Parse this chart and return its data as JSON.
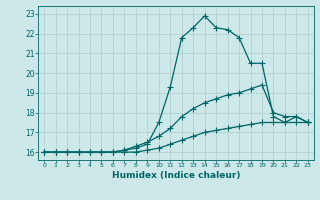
{
  "xlabel": "Humidex (Indice chaleur)",
  "bg_color": "#cce8e8",
  "line_color": "#006666",
  "grid_color": "#b0cccc",
  "xlim": [
    -0.5,
    23.5
  ],
  "ylim": [
    15.6,
    23.4
  ],
  "xticks": [
    0,
    1,
    2,
    3,
    4,
    5,
    6,
    7,
    8,
    9,
    10,
    11,
    12,
    13,
    14,
    15,
    16,
    17,
    18,
    19,
    20,
    21,
    22,
    23
  ],
  "yticks": [
    16,
    17,
    18,
    19,
    20,
    21,
    22,
    23
  ],
  "line1_x": [
    0,
    1,
    2,
    3,
    4,
    5,
    6,
    7,
    8,
    9,
    10,
    11,
    12,
    13,
    14,
    15,
    16,
    17,
    18,
    19,
    20,
    21,
    22,
    23
  ],
  "line1_y": [
    16.0,
    16.0,
    16.0,
    16.0,
    16.0,
    16.0,
    16.0,
    16.0,
    16.0,
    16.1,
    16.2,
    16.4,
    16.6,
    16.8,
    17.0,
    17.1,
    17.2,
    17.3,
    17.4,
    17.5,
    17.5,
    17.5,
    17.5,
    17.5
  ],
  "line2_x": [
    0,
    1,
    2,
    3,
    4,
    5,
    6,
    7,
    8,
    9,
    10,
    11,
    12,
    13,
    14,
    15,
    16,
    17,
    18,
    19,
    20,
    21,
    22,
    23
  ],
  "line2_y": [
    16.0,
    16.0,
    16.0,
    16.0,
    16.0,
    16.0,
    16.0,
    16.1,
    16.2,
    16.4,
    17.5,
    19.3,
    21.8,
    22.3,
    22.9,
    22.3,
    22.2,
    21.8,
    20.5,
    20.5,
    17.8,
    17.5,
    17.8,
    17.5
  ],
  "line3_x": [
    0,
    1,
    2,
    3,
    4,
    5,
    6,
    7,
    8,
    9,
    10,
    11,
    12,
    13,
    14,
    15,
    16,
    17,
    18,
    19,
    20,
    21,
    22,
    23
  ],
  "line3_y": [
    16.0,
    16.0,
    16.0,
    16.0,
    16.0,
    16.0,
    16.0,
    16.1,
    16.3,
    16.5,
    16.8,
    17.2,
    17.8,
    18.2,
    18.5,
    18.7,
    18.9,
    19.0,
    19.2,
    19.4,
    18.0,
    17.8,
    17.8,
    17.5
  ],
  "markersize": 3,
  "linewidth": 0.9
}
